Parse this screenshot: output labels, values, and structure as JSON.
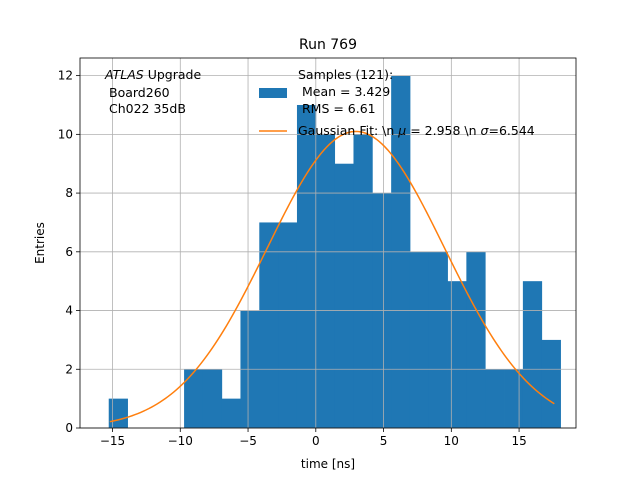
{
  "chart_data": {
    "type": "bar",
    "title": "Run 769",
    "xlabel": "time [ns]",
    "ylabel": "Entries",
    "xlim": [
      -17.4,
      19.2
    ],
    "ylim": [
      0,
      12.6
    ],
    "xticks": [
      -15,
      -10,
      -5,
      0,
      5,
      10,
      15
    ],
    "yticks": [
      0,
      2,
      4,
      6,
      8,
      10,
      12
    ],
    "grid": true,
    "annotation": {
      "italic": "ATLAS",
      "line1_rest": " Upgrade",
      "line2": "Board260",
      "line3": "Ch022 35dB"
    },
    "legend": {
      "hist_label_lines": [
        "Samples (121):",
        " Mean = 3.429",
        " RMS = 6.61"
      ],
      "fit_label_prefix": "Gaussian Fit: \\n ",
      "fit_mu_symbol": "μ",
      "fit_mu_value": " = 2.958 \\n ",
      "fit_sigma_symbol": "σ",
      "fit_sigma_value": "=6.544"
    },
    "bin_width": 1.39,
    "bins": [
      {
        "x": -15.28,
        "count": 1
      },
      {
        "x": -13.89,
        "count": 0
      },
      {
        "x": -12.5,
        "count": 0
      },
      {
        "x": -11.11,
        "count": 0
      },
      {
        "x": -9.72,
        "count": 2
      },
      {
        "x": -8.33,
        "count": 2
      },
      {
        "x": -6.94,
        "count": 1
      },
      {
        "x": -5.56,
        "count": 4
      },
      {
        "x": -4.17,
        "count": 7
      },
      {
        "x": -2.78,
        "count": 7
      },
      {
        "x": -1.39,
        "count": 11
      },
      {
        "x": 0.0,
        "count": 10
      },
      {
        "x": 1.39,
        "count": 9
      },
      {
        "x": 2.78,
        "count": 10
      },
      {
        "x": 4.17,
        "count": 8
      },
      {
        "x": 5.56,
        "count": 12
      },
      {
        "x": 6.94,
        "count": 6
      },
      {
        "x": 8.33,
        "count": 6
      },
      {
        "x": 9.72,
        "count": 5
      },
      {
        "x": 11.11,
        "count": 6
      },
      {
        "x": 12.5,
        "count": 2
      },
      {
        "x": 13.89,
        "count": 2
      },
      {
        "x": 15.28,
        "count": 5
      },
      {
        "x": 16.67,
        "count": 3
      }
    ],
    "fit": {
      "amplitude": 10.1,
      "mu": 2.958,
      "sigma": 6.544,
      "x_range": [
        -15.2,
        17.6
      ]
    },
    "colors": {
      "hist": "#1f77b4",
      "fit": "#ff7f0e",
      "grid": "#b0b0b0",
      "frame": "#000000"
    }
  }
}
